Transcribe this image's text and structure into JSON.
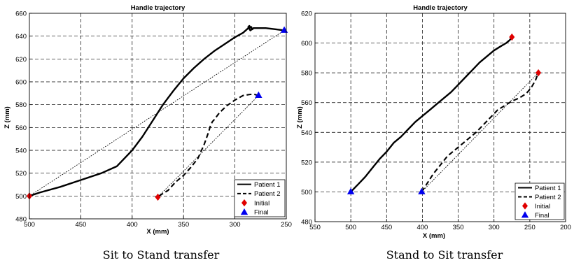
{
  "chart_data": [
    {
      "type": "line",
      "title": "Handle trajectory",
      "xlabel": "X (mm)",
      "ylabel": "Z (mm)",
      "caption": "Sit to Stand transfer",
      "xlim": [
        500,
        250
      ],
      "ylim": [
        480,
        660
      ],
      "xticks": [
        500,
        450,
        400,
        350,
        300,
        250
      ],
      "yticks": [
        480,
        500,
        520,
        540,
        560,
        580,
        600,
        620,
        640,
        660
      ],
      "grid": true,
      "legend_position": "lower-right",
      "legend": [
        "Patient 1",
        "Patient 2",
        "Initial",
        "Final"
      ],
      "series": [
        {
          "name": "Patient 1",
          "style": "solid",
          "x": [
            500,
            490,
            470,
            450,
            430,
            415,
            400,
            390,
            380,
            370,
            360,
            350,
            340,
            330,
            320,
            310,
            300,
            292,
            287,
            284,
            283.5,
            285,
            287,
            286,
            284,
            283,
            282,
            279,
            270,
            260,
            252
          ],
          "y": [
            500,
            503,
            508,
            514,
            520,
            526,
            540,
            552,
            566,
            580,
            592,
            603,
            612,
            620,
            627,
            633,
            639,
            643,
            647,
            648,
            646,
            645,
            648,
            649,
            647,
            646,
            647,
            647,
            647,
            646,
            645
          ]
        },
        {
          "name": "Patient 2",
          "style": "dashed",
          "x": [
            374,
            365,
            358,
            350,
            343,
            336,
            330,
            326,
            324,
            322,
            320,
            315,
            308,
            300,
            292,
            285,
            281,
            277
          ],
          "y": [
            500,
            505,
            512,
            518,
            525,
            533,
            545,
            555,
            561,
            565,
            567,
            573,
            579,
            584,
            588,
            589,
            589,
            588
          ]
        },
        {
          "name": "Patient 1 (straight path)",
          "style": "dotted",
          "x": [
            500,
            252
          ],
          "y": [
            500,
            645
          ]
        },
        {
          "name": "Patient 2 (straight path)",
          "style": "dotted",
          "x": [
            374,
            277
          ],
          "y": [
            500,
            588
          ]
        }
      ],
      "markers": [
        {
          "name": "Initial",
          "shape": "diamond",
          "color": "#e00000",
          "points": [
            {
              "x": 500,
              "y": 500
            },
            {
              "x": 375,
              "y": 499
            }
          ]
        },
        {
          "name": "Final",
          "shape": "triangle",
          "color": "#0000ee",
          "points": [
            {
              "x": 252,
              "y": 645
            },
            {
              "x": 277,
              "y": 588
            }
          ]
        }
      ]
    },
    {
      "type": "line",
      "title": "Handle trajectory",
      "xlabel": "X (mm)",
      "ylabel": "Z (mm)",
      "caption": "Stand to Sit transfer",
      "xlim": [
        550,
        200
      ],
      "ylim": [
        480,
        620
      ],
      "xticks": [
        550,
        500,
        450,
        400,
        350,
        300,
        250,
        200
      ],
      "yticks": [
        480,
        500,
        520,
        540,
        560,
        580,
        600,
        620
      ],
      "grid": true,
      "legend_position": "lower-right",
      "legend": [
        "Patient 1",
        "Patient 2",
        "Initial",
        "Final"
      ],
      "series": [
        {
          "name": "Patient 1",
          "style": "solid",
          "x": [
            500,
            490,
            480,
            470,
            460,
            450,
            440,
            430,
            420,
            410,
            400,
            390,
            380,
            370,
            360,
            350,
            340,
            330,
            320,
            310,
            300,
            290,
            283,
            278,
            275
          ],
          "y": [
            500,
            505,
            510,
            516,
            522,
            527,
            533,
            537,
            542,
            547,
            551,
            555,
            559,
            563,
            567,
            572,
            577,
            582,
            587,
            591,
            595,
            598,
            600,
            602,
            604
          ]
        },
        {
          "name": "Patient 2",
          "style": "dashed",
          "x": [
            401,
            393,
            385,
            375,
            365,
            355,
            345,
            335,
            325,
            315,
            305,
            295,
            285,
            275,
            265,
            255,
            248,
            242,
            238
          ],
          "y": [
            500,
            506,
            512,
            518,
            524,
            528,
            532,
            536,
            540,
            545,
            550,
            555,
            558,
            561,
            563,
            566,
            570,
            575,
            580
          ]
        },
        {
          "name": "Patient 2 (straight path)",
          "style": "dotted",
          "x": [
            401,
            238
          ],
          "y": [
            500,
            580
          ]
        }
      ],
      "markers": [
        {
          "name": "Initial",
          "shape": "diamond",
          "color": "#e00000",
          "points": [
            {
              "x": 275,
              "y": 604
            },
            {
              "x": 238,
              "y": 580
            }
          ]
        },
        {
          "name": "Final",
          "shape": "triangle",
          "color": "#0000ee",
          "points": [
            {
              "x": 500,
              "y": 500
            },
            {
              "x": 401,
              "y": 500
            }
          ]
        }
      ]
    }
  ]
}
